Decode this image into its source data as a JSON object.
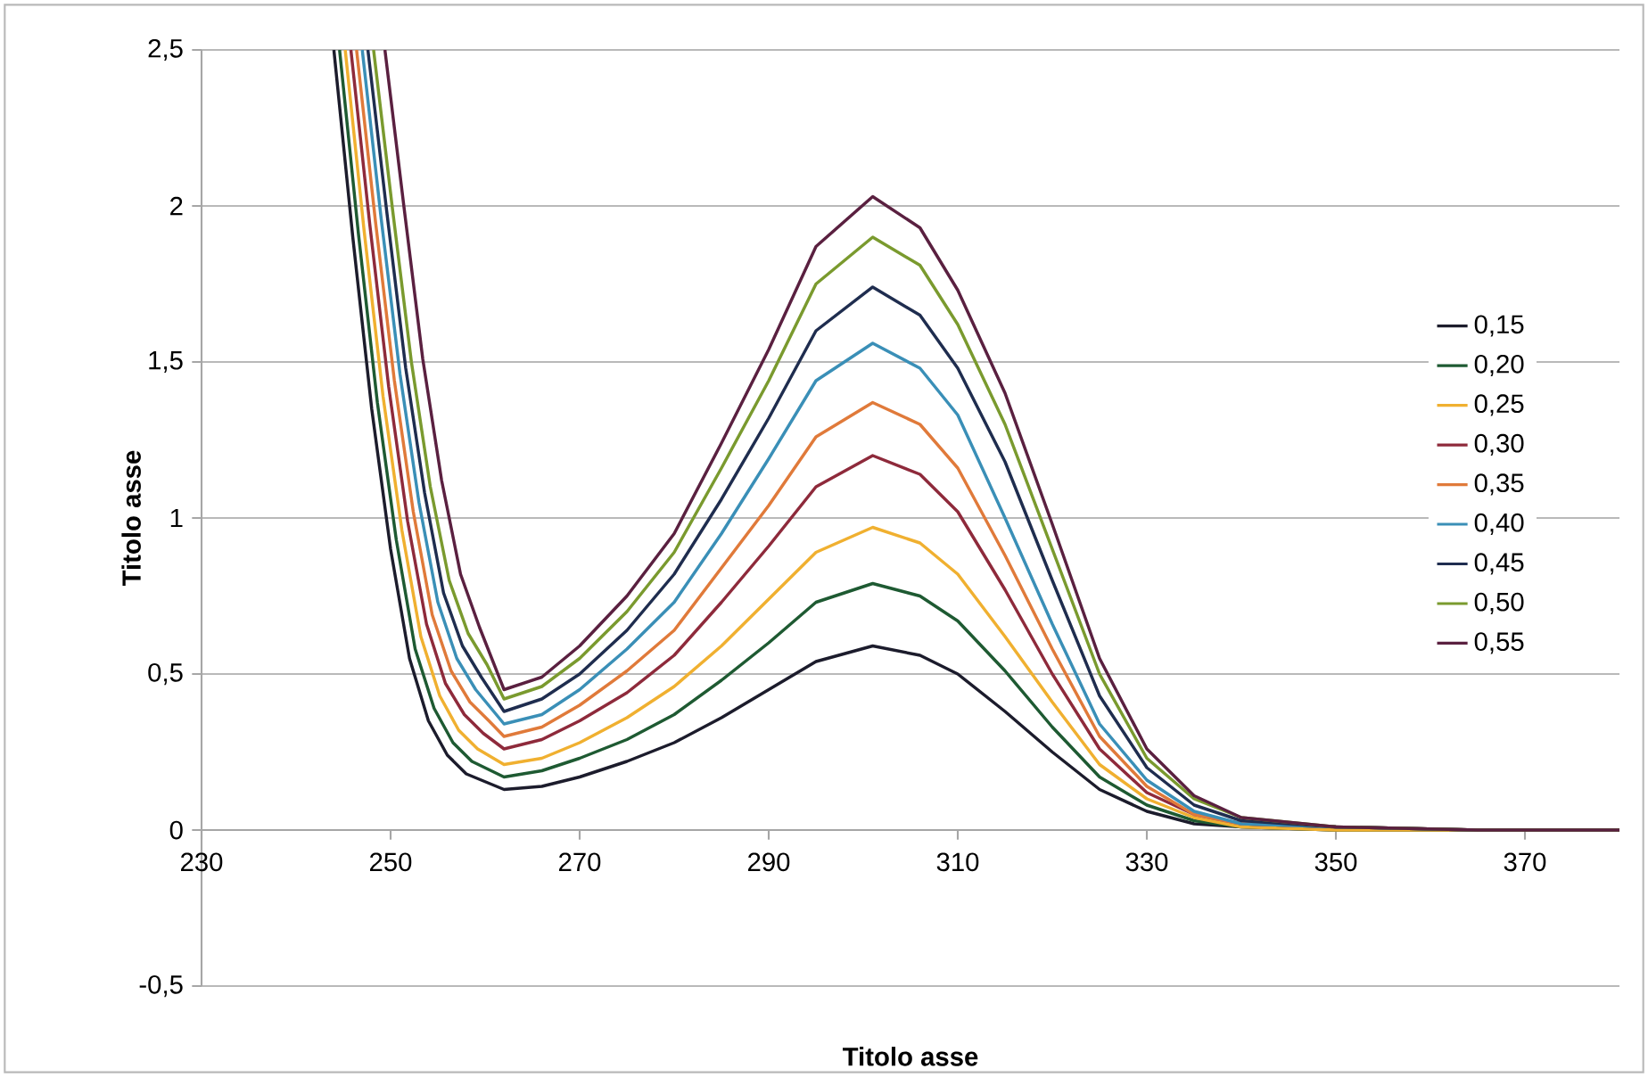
{
  "chart_data": {
    "type": "line",
    "xlabel": "Titolo asse",
    "ylabel": "Titolo asse",
    "xlim": [
      230,
      380
    ],
    "ylim": [
      -0.5,
      2.5
    ],
    "xticks": [
      230,
      250,
      270,
      290,
      310,
      330,
      350,
      370
    ],
    "yticks": [
      {
        "value": -0.5,
        "label": "-0,5"
      },
      0,
      {
        "value": 0.5,
        "label": "0,5"
      },
      1,
      {
        "value": 1.5,
        "label": "1,5"
      },
      2,
      {
        "value": 2.5,
        "label": "2,5"
      }
    ],
    "grid": "y",
    "legend": "right",
    "series": [
      {
        "name": "0,15",
        "color": "#1c1c2c",
        "x": [
          244,
          246,
          248,
          250,
          252,
          254,
          256,
          258,
          262,
          266,
          270,
          275,
          280,
          285,
          290,
          295,
          301,
          306,
          310,
          315,
          320,
          325,
          330,
          335,
          340,
          350,
          365,
          380
        ],
        "values": [
          2.5,
          1.9,
          1.35,
          0.9,
          0.55,
          0.35,
          0.24,
          0.18,
          0.13,
          0.14,
          0.17,
          0.22,
          0.28,
          0.36,
          0.45,
          0.54,
          0.59,
          0.56,
          0.5,
          0.38,
          0.25,
          0.13,
          0.06,
          0.02,
          0.01,
          0,
          0,
          0
        ]
      },
      {
        "name": "0,20",
        "color": "#1e5a32",
        "x": [
          244.6,
          246.6,
          248.6,
          250.6,
          252.6,
          254.6,
          256.6,
          258.6,
          262,
          266,
          270,
          275,
          280,
          285,
          290,
          295,
          301,
          306,
          310,
          315,
          320,
          325,
          330,
          335,
          340,
          350,
          365,
          380
        ],
        "values": [
          2.5,
          1.91,
          1.37,
          0.93,
          0.58,
          0.39,
          0.28,
          0.22,
          0.17,
          0.19,
          0.23,
          0.29,
          0.37,
          0.48,
          0.6,
          0.73,
          0.79,
          0.75,
          0.67,
          0.51,
          0.33,
          0.17,
          0.08,
          0.03,
          0.01,
          0,
          0,
          0
        ]
      },
      {
        "name": "0,25",
        "color": "#f0b030",
        "x": [
          245.2,
          247.2,
          249.2,
          251.2,
          253.2,
          255.2,
          257.2,
          259.2,
          262,
          266,
          270,
          275,
          280,
          285,
          290,
          295,
          301,
          306,
          310,
          315,
          320,
          325,
          330,
          335,
          340,
          350,
          365,
          380
        ],
        "values": [
          2.5,
          1.92,
          1.39,
          0.96,
          0.62,
          0.43,
          0.32,
          0.26,
          0.21,
          0.23,
          0.28,
          0.36,
          0.46,
          0.59,
          0.74,
          0.89,
          0.97,
          0.92,
          0.82,
          0.62,
          0.41,
          0.21,
          0.1,
          0.04,
          0.01,
          0,
          0,
          0
        ]
      },
      {
        "name": "0,30",
        "color": "#8e2a3b",
        "x": [
          245.8,
          247.8,
          249.8,
          251.8,
          253.8,
          255.8,
          257.8,
          259.8,
          262,
          266,
          270,
          275,
          280,
          285,
          290,
          295,
          301,
          306,
          310,
          315,
          320,
          325,
          330,
          335,
          340,
          350,
          365,
          380
        ],
        "values": [
          2.5,
          1.94,
          1.42,
          0.99,
          0.66,
          0.47,
          0.37,
          0.31,
          0.26,
          0.29,
          0.35,
          0.44,
          0.56,
          0.73,
          0.91,
          1.1,
          1.2,
          1.14,
          1.02,
          0.77,
          0.5,
          0.26,
          0.12,
          0.05,
          0.02,
          0.01,
          0,
          0
        ]
      },
      {
        "name": "0,35",
        "color": "#e07a3a",
        "x": [
          246.4,
          248.4,
          250.4,
          252.4,
          254.4,
          256.4,
          258.4,
          260.4,
          262,
          266,
          270,
          275,
          280,
          285,
          290,
          295,
          301,
          306,
          310,
          315,
          320,
          325,
          330,
          335,
          340,
          350,
          365,
          380
        ],
        "values": [
          2.5,
          1.95,
          1.44,
          1.02,
          0.69,
          0.51,
          0.41,
          0.35,
          0.3,
          0.33,
          0.4,
          0.51,
          0.64,
          0.84,
          1.04,
          1.26,
          1.37,
          1.3,
          1.16,
          0.88,
          0.58,
          0.3,
          0.14,
          0.05,
          0.02,
          0.01,
          0,
          0
        ]
      },
      {
        "name": "0,40",
        "color": "#3a8fb7",
        "x": [
          247,
          249,
          251,
          253,
          255,
          257,
          259,
          262,
          266,
          270,
          275,
          280,
          285,
          290,
          295,
          301,
          306,
          310,
          315,
          320,
          325,
          330,
          335,
          340,
          350,
          365,
          380
        ],
        "values": [
          2.5,
          1.96,
          1.46,
          1.05,
          0.73,
          0.55,
          0.45,
          0.34,
          0.37,
          0.45,
          0.58,
          0.73,
          0.95,
          1.19,
          1.44,
          1.56,
          1.48,
          1.33,
          1.0,
          0.66,
          0.34,
          0.16,
          0.06,
          0.02,
          0.01,
          0,
          0
        ]
      },
      {
        "name": "0,45",
        "color": "#1f2d4f",
        "x": [
          247.6,
          249.6,
          251.6,
          253.6,
          255.6,
          257.6,
          259.6,
          262,
          266,
          270,
          275,
          280,
          285,
          290,
          295,
          301,
          306,
          310,
          315,
          320,
          325,
          330,
          335,
          340,
          350,
          365,
          380
        ],
        "values": [
          2.5,
          1.98,
          1.48,
          1.08,
          0.76,
          0.59,
          0.49,
          0.38,
          0.42,
          0.5,
          0.64,
          0.82,
          1.06,
          1.32,
          1.6,
          1.74,
          1.65,
          1.48,
          1.18,
          0.8,
          0.43,
          0.2,
          0.08,
          0.03,
          0.01,
          0,
          0
        ]
      },
      {
        "name": "0,50",
        "color": "#7a9a2e",
        "x": [
          248.2,
          250.2,
          252.2,
          254.2,
          256.2,
          258.2,
          260.2,
          262,
          266,
          270,
          275,
          280,
          285,
          290,
          295,
          301,
          306,
          310,
          315,
          320,
          325,
          330,
          335,
          340,
          350,
          365,
          380
        ],
        "values": [
          2.5,
          1.99,
          1.5,
          1.1,
          0.8,
          0.63,
          0.53,
          0.42,
          0.46,
          0.55,
          0.7,
          0.89,
          1.16,
          1.44,
          1.75,
          1.9,
          1.81,
          1.62,
          1.3,
          0.9,
          0.5,
          0.23,
          0.1,
          0.04,
          0.01,
          0,
          0
        ]
      },
      {
        "name": "0,55",
        "color": "#5a2040",
        "x": [
          249.4,
          251.4,
          253.4,
          255.4,
          257.4,
          259.4,
          262,
          266,
          270,
          275,
          280,
          285,
          290,
          295,
          301,
          306,
          310,
          315,
          320,
          325,
          330,
          335,
          340,
          350,
          365,
          380
        ],
        "values": [
          2.5,
          2.0,
          1.51,
          1.12,
          0.82,
          0.65,
          0.45,
          0.49,
          0.59,
          0.75,
          0.95,
          1.24,
          1.54,
          1.87,
          2.03,
          1.93,
          1.73,
          1.4,
          0.98,
          0.55,
          0.26,
          0.11,
          0.04,
          0.01,
          0,
          0
        ]
      }
    ]
  }
}
